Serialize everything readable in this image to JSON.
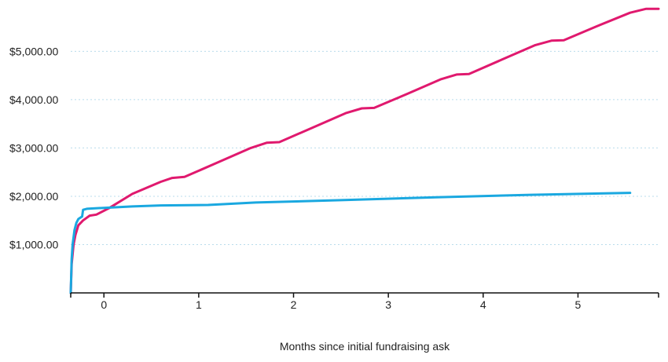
{
  "chart_data": {
    "type": "line",
    "title": "",
    "xlabel": "Months since initial fundraising ask",
    "ylabel": "",
    "xlim": [
      -0.35,
      5.85
    ],
    "ylim": [
      0,
      5900
    ],
    "x_ticks": [
      0,
      1,
      2,
      3,
      4,
      5
    ],
    "y_ticks": [
      1000,
      2000,
      3000,
      4000,
      5000
    ],
    "y_tick_labels": [
      "$1,000.00",
      "$2,000.00",
      "$3,000.00",
      "$4,000.00",
      "$5,000.00"
    ],
    "grid": "horizontal dotted",
    "series": [
      {
        "color": "#e0196e",
        "points": [
          [
            -0.35,
            0
          ],
          [
            -0.34,
            600
          ],
          [
            -0.32,
            1000
          ],
          [
            -0.3,
            1200
          ],
          [
            -0.27,
            1400
          ],
          [
            -0.22,
            1500
          ],
          [
            -0.15,
            1600
          ],
          [
            -0.08,
            1620
          ],
          [
            0.05,
            1750
          ],
          [
            0.3,
            2050
          ],
          [
            0.6,
            2300
          ],
          [
            0.72,
            2380
          ],
          [
            0.85,
            2400
          ],
          [
            1.2,
            2700
          ],
          [
            1.55,
            3000
          ],
          [
            1.72,
            3110
          ],
          [
            1.85,
            3120
          ],
          [
            2.2,
            3420
          ],
          [
            2.55,
            3720
          ],
          [
            2.72,
            3820
          ],
          [
            2.85,
            3830
          ],
          [
            3.2,
            4120
          ],
          [
            3.55,
            4420
          ],
          [
            3.72,
            4520
          ],
          [
            3.85,
            4530
          ],
          [
            4.2,
            4830
          ],
          [
            4.55,
            5130
          ],
          [
            4.72,
            5220
          ],
          [
            4.85,
            5230
          ],
          [
            5.2,
            5520
          ],
          [
            5.55,
            5800
          ],
          [
            5.72,
            5880
          ],
          [
            5.85,
            5880
          ]
        ]
      },
      {
        "color": "#1aa8e0",
        "points": [
          [
            -0.35,
            0
          ],
          [
            -0.34,
            700
          ],
          [
            -0.33,
            1000
          ],
          [
            -0.31,
            1300
          ],
          [
            -0.29,
            1450
          ],
          [
            -0.27,
            1530
          ],
          [
            -0.23,
            1580
          ],
          [
            -0.22,
            1720
          ],
          [
            -0.18,
            1740
          ],
          [
            0,
            1760
          ],
          [
            0.3,
            1790
          ],
          [
            0.6,
            1810
          ],
          [
            1.1,
            1820
          ],
          [
            1.6,
            1870
          ],
          [
            2.5,
            1920
          ],
          [
            3.5,
            1980
          ],
          [
            4.5,
            2030
          ],
          [
            5.55,
            2070
          ]
        ]
      }
    ]
  }
}
